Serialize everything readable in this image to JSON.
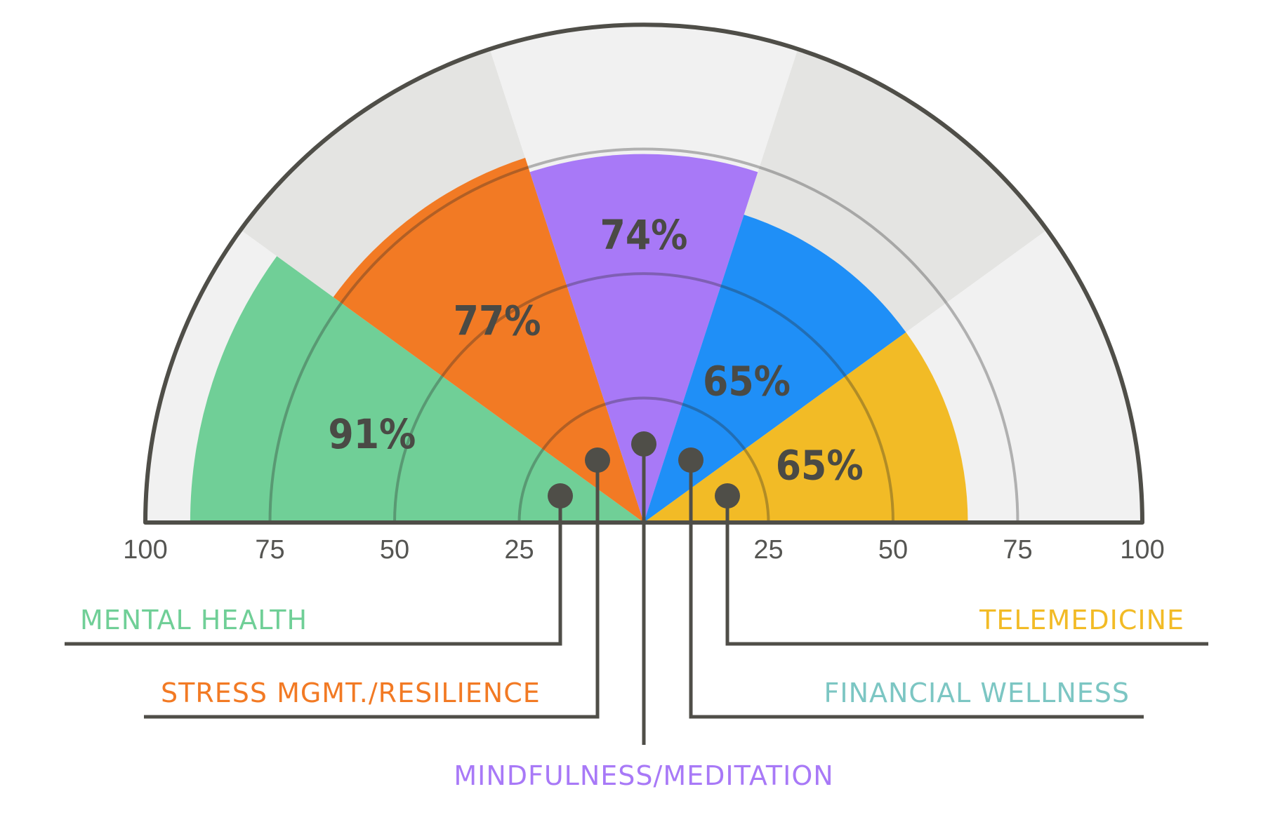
{
  "chart_data": {
    "type": "radial-bar",
    "ylim": [
      0,
      100
    ],
    "axis_ticks_left": [
      "100",
      "75",
      "50",
      "25"
    ],
    "axis_ticks_right": [
      "25",
      "50",
      "75",
      "100"
    ],
    "grid_rings": [
      25,
      50,
      75
    ],
    "series": [
      {
        "name": "MENTAL HEALTH",
        "value": 91,
        "value_label": "91%",
        "color": "#70cf97"
      },
      {
        "name": "STRESS MGMT./RESILIENCE",
        "value": 77,
        "value_label": "77%",
        "color": "#f27a24"
      },
      {
        "name": "MINDFULNESS/MEDITATION",
        "value": 74,
        "value_label": "74%",
        "color": "#a879f7"
      },
      {
        "name": "FINANCIAL WELLNESS",
        "value": 65,
        "value_label": "65%",
        "color": "#1f8ff7",
        "label_color": "#7cc6c3"
      },
      {
        "name": "TELEMEDICINE",
        "value": 65,
        "value_label": "65%",
        "color": "#f2bb26"
      }
    ],
    "background_colors": [
      "#f1f1f1",
      "#e4e4e2"
    ],
    "frame_color": "#4f4e48"
  }
}
